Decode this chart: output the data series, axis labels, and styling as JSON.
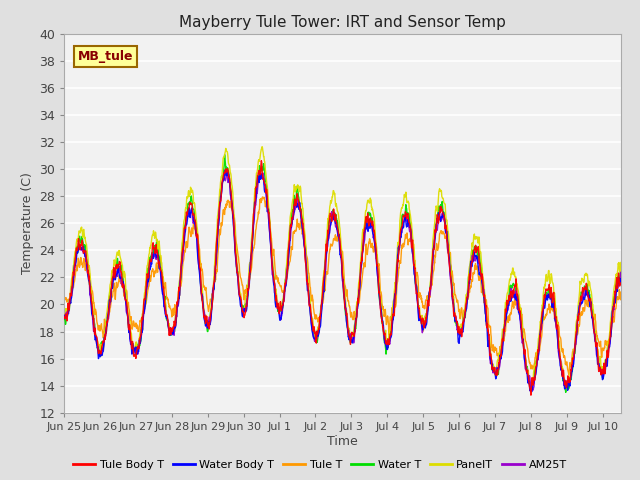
{
  "title": "Mayberry Tule Tower: IRT and Sensor Temp",
  "xlabel": "Time",
  "ylabel": "Temperature (C)",
  "ylim": [
    12,
    40
  ],
  "yticks": [
    12,
    14,
    16,
    18,
    20,
    22,
    24,
    26,
    28,
    30,
    32,
    34,
    36,
    38,
    40
  ],
  "x_tick_labels": [
    "Jun 25",
    "Jun 26",
    "Jun 27",
    "Jun 28",
    "Jun 29",
    "Jun 30",
    "Jul 1",
    "Jul 2",
    "Jul 3",
    "Jul 4",
    "Jul 5",
    "Jul 6",
    "Jul 7",
    "Jul 8",
    "Jul 9",
    "Jul 10"
  ],
  "annotation_text": "MB_tule",
  "annotation_bg": "#ffff99",
  "annotation_border": "#996600",
  "annotation_text_color": "#880000",
  "series_colors": {
    "Tule Body T": "#ff0000",
    "Water Body T": "#0000ff",
    "Tule T": "#ff9900",
    "Water T": "#00dd00",
    "PanelT": "#dddd00",
    "AM25T": "#9900cc"
  },
  "bg_color": "#e0e0e0",
  "plot_bg": "#f2f2f2",
  "grid_color": "#ffffff",
  "n_days": 15.5,
  "points_per_day": 96,
  "figsize": [
    6.4,
    4.8
  ],
  "dpi": 100
}
